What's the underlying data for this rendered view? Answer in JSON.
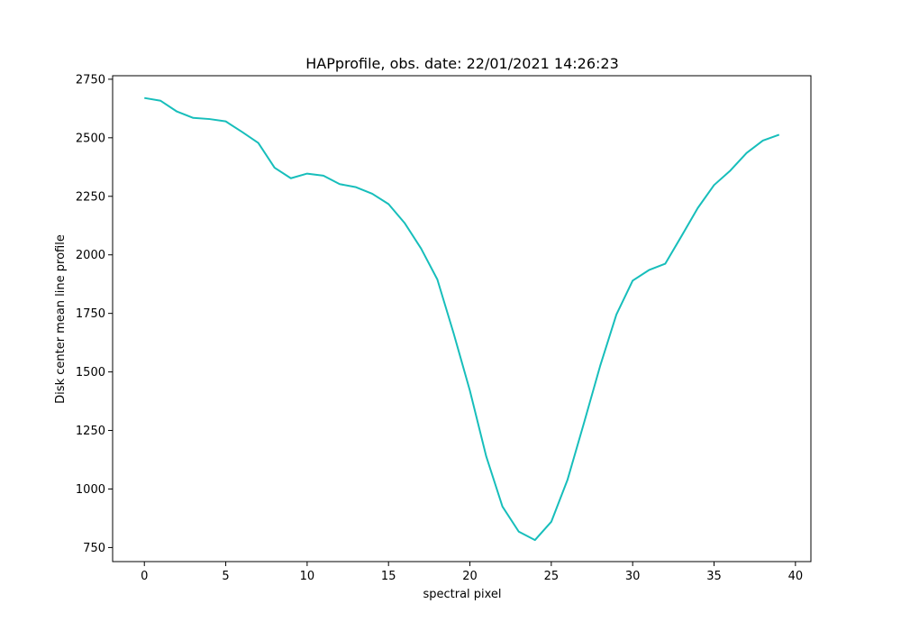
{
  "chart_data": {
    "type": "line",
    "title": "HAPprofile, obs. date: 22/01/2021 14:26:23",
    "xlabel": "spectral pixel",
    "ylabel": "Disk center mean line profile",
    "xlim": [
      -1.95,
      40.95
    ],
    "ylim": [
      690,
      2765
    ],
    "xticks": [
      0,
      5,
      10,
      15,
      20,
      25,
      30,
      35,
      40
    ],
    "yticks": [
      750,
      1000,
      1250,
      1500,
      1750,
      2000,
      2250,
      2500,
      2750
    ],
    "grid": false,
    "line_color": "#17bebb",
    "series": [
      {
        "x": [
          0,
          1,
          2,
          3,
          4,
          5,
          6,
          7,
          8,
          9,
          10,
          11,
          12,
          13,
          14,
          15,
          16,
          17,
          18,
          19,
          20,
          21,
          22,
          23,
          24,
          25,
          26,
          27,
          28,
          29,
          30,
          31,
          32,
          33,
          34,
          35,
          36,
          37,
          38,
          39
        ],
        "values": [
          2670,
          2658,
          2612,
          2585,
          2580,
          2570,
          2525,
          2478,
          2372,
          2327,
          2347,
          2338,
          2302,
          2289,
          2261,
          2217,
          2135,
          2027,
          1895,
          1665,
          1420,
          1140,
          925,
          818,
          782,
          860,
          1040,
          1280,
          1525,
          1745,
          1890,
          1935,
          1962,
          2080,
          2200,
          2298,
          2360,
          2435,
          2488,
          2513
        ]
      }
    ]
  }
}
